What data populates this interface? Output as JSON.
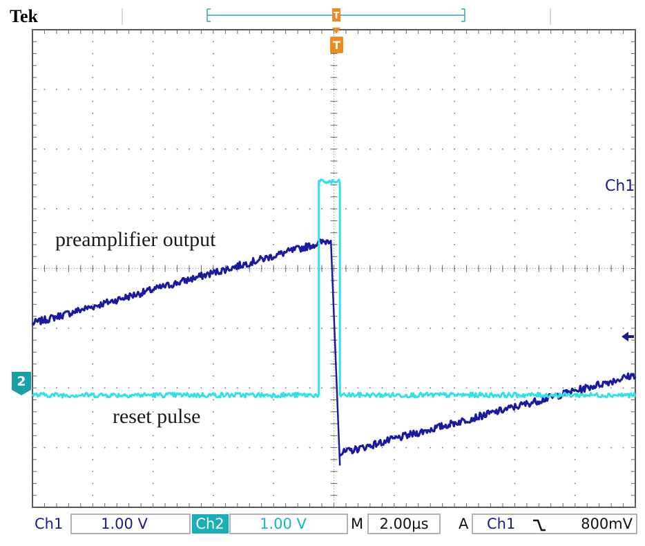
{
  "header": {
    "brand": "Tek",
    "trigger_marker": "T"
  },
  "channel_marker_ch2": "2",
  "chart_data": {
    "type": "line",
    "title": "",
    "xlabel": "",
    "ylabel": "",
    "x_divisions": 10,
    "y_divisions": 8,
    "x_units": "µs",
    "y_units": "V",
    "grid": true,
    "annotations": [
      "preamplifier output",
      "reset pulse"
    ],
    "series": [
      {
        "name": "Ch1",
        "color": "#1a1aa0",
        "segments": [
          {
            "x": [
              -10.0,
              -0.1
            ],
            "y": [
              -0.92,
              0.48
            ]
          },
          {
            "x": [
              0.2,
              10.0
            ],
            "y": [
              -3.1,
              -1.78
            ]
          }
        ]
      },
      {
        "name": "Ch2",
        "color": "#33e0e6",
        "segments": [
          {
            "x": [
              -10.0,
              -0.5,
              -0.5,
              0.2,
              0.2,
              10.0
            ],
            "y": [
              -2.12,
              -2.12,
              1.45,
              1.45,
              -2.12,
              -2.12
            ]
          }
        ]
      }
    ]
  },
  "status_bar": {
    "ch1_label": "Ch1",
    "ch1_scale": "1.00 V",
    "ch2_label": "Ch2",
    "ch2_scale": "1.00 V",
    "m_label": "M",
    "timebase": "2.00µs",
    "a_label": "A",
    "trig_source": "Ch1",
    "trig_slope_icon": "falling-edge-icon",
    "trig_level": "800mV"
  },
  "colors": {
    "ch1": "#1a1aa0",
    "ch2": "#33e0e6",
    "trigger": "#f08a1c"
  }
}
